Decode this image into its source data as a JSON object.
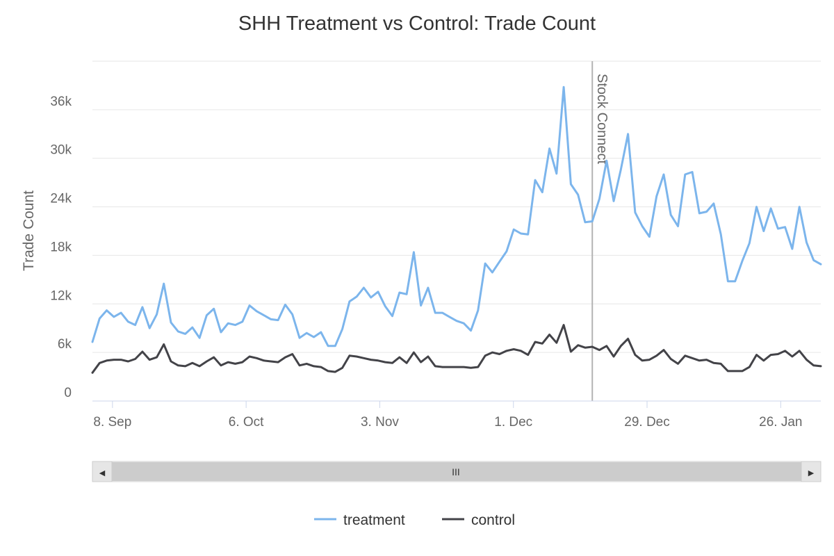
{
  "chart_data": {
    "type": "line",
    "title": "SHH Treatment vs Control: Trade Count",
    "xlabel": "",
    "ylabel": "Trade Count",
    "ylim": [
      0,
      42000
    ],
    "x_tick_labels": [
      "8. Sep",
      "6. Oct",
      "3. Nov",
      "1. Dec",
      "29. Dec",
      "26. Jan"
    ],
    "y_ticks": [
      {
        "value": 0,
        "label": "0"
      },
      {
        "value": 6000,
        "label": "6k"
      },
      {
        "value": 12000,
        "label": "12k"
      },
      {
        "value": 18000,
        "label": "18k"
      },
      {
        "value": 24000,
        "label": "24k"
      },
      {
        "value": 30000,
        "label": "30k"
      },
      {
        "value": 36000,
        "label": "36k"
      }
    ],
    "grid": true,
    "legend": "bottom-center",
    "annotations": [
      {
        "type": "vertical-line",
        "label": "Stock Connect",
        "x_index": 70
      }
    ],
    "series": [
      {
        "name": "treatment",
        "color": "#7cb5ec",
        "values": [
          7300,
          10200,
          11200,
          10400,
          10900,
          9800,
          9400,
          11600,
          9000,
          10700,
          14500,
          9700,
          8600,
          8300,
          9100,
          7800,
          10600,
          11400,
          8500,
          9600,
          9400,
          9800,
          11800,
          11100,
          10600,
          10100,
          10000,
          11900,
          10700,
          7800,
          8400,
          7900,
          8500,
          6800,
          6800,
          8900,
          12300,
          12900,
          14000,
          12800,
          13500,
          11700,
          10500,
          13400,
          13200,
          18400,
          11800,
          14000,
          10900,
          10900,
          10400,
          9900,
          9600,
          8700,
          11200,
          17000,
          15900,
          17200,
          18500,
          21200,
          20700,
          20600,
          27300,
          25800,
          31200,
          28100,
          38800,
          26800,
          25500,
          22100,
          22200,
          25000,
          29700,
          24700,
          28600,
          33000,
          23300,
          21600,
          20300,
          25300,
          28000,
          23000,
          21600,
          28000,
          28300,
          23200,
          23400,
          24400,
          20600,
          14800,
          14800,
          17300,
          19500,
          24000,
          21000,
          23800,
          21300,
          21500,
          18800,
          24000,
          19600,
          17400,
          16900
        ]
      },
      {
        "name": "control",
        "color": "#434348",
        "values": [
          3500,
          4700,
          5000,
          5100,
          5100,
          4900,
          5200,
          6100,
          5100,
          5400,
          7000,
          4900,
          4400,
          4300,
          4700,
          4300,
          4900,
          5400,
          4400,
          4800,
          4600,
          4800,
          5500,
          5300,
          5000,
          4900,
          4800,
          5400,
          5800,
          4400,
          4600,
          4300,
          4200,
          3700,
          3600,
          4100,
          5600,
          5500,
          5300,
          5100,
          5000,
          4800,
          4700,
          5400,
          4700,
          6000,
          4800,
          5500,
          4300,
          4200,
          4200,
          4200,
          4200,
          4100,
          4200,
          5600,
          6000,
          5800,
          6200,
          6400,
          6200,
          5700,
          7300,
          7100,
          8200,
          7200,
          9400,
          6100,
          6900,
          6600,
          6700,
          6300,
          6800,
          5500,
          6800,
          7700,
          5700,
          5000,
          5100,
          5600,
          6300,
          5200,
          4600,
          5600,
          5300,
          5000,
          5100,
          4700,
          4600,
          3700,
          3700,
          3700,
          4200,
          5700,
          5000,
          5700,
          5800,
          6200,
          5500,
          6200,
          5100,
          4400,
          4300
        ]
      }
    ]
  },
  "scrollbar": {
    "left_arrow": "◀",
    "right_arrow": "▶",
    "grip": "III"
  }
}
